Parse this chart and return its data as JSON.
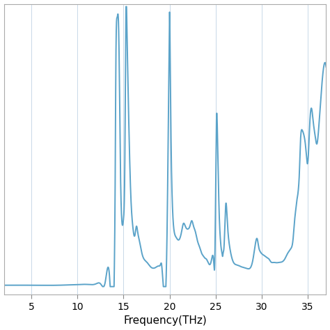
{
  "line_color": "#5ba3c9",
  "background_color": "#ffffff",
  "xlabel": "Frequency(THz)",
  "ylabel": "",
  "xlim": [
    2,
    37
  ],
  "ylim": [
    -0.03,
    1.03
  ],
  "xticks": [
    5,
    10,
    15,
    20,
    25,
    30,
    35
  ],
  "grid_color": "#c8d8e8",
  "line_width": 1.4,
  "figsize": [
    4.74,
    4.74
  ],
  "dpi": 100,
  "keypoints_x": [
    2.0,
    3.0,
    5.0,
    8.0,
    9.0,
    10.0,
    11.0,
    12.0,
    12.5,
    13.0,
    13.5,
    14.0,
    14.1,
    14.15,
    14.2,
    14.3,
    14.45,
    14.6,
    14.65,
    14.7,
    15.0,
    15.15,
    15.2,
    15.25,
    15.35,
    15.6,
    15.8,
    16.0,
    16.15,
    16.25,
    16.4,
    16.55,
    16.7,
    17.0,
    17.5,
    18.0,
    18.5,
    18.8,
    19.0,
    19.1,
    19.7,
    19.85,
    19.95,
    20.0,
    20.05,
    20.15,
    20.3,
    20.5,
    20.7,
    21.0,
    21.3,
    21.5,
    21.7,
    21.9,
    22.0,
    22.2,
    22.4,
    22.6,
    22.8,
    23.0,
    23.3,
    23.5,
    23.7,
    23.8,
    24.0,
    24.5,
    24.8,
    24.9,
    25.0,
    25.1,
    25.2,
    25.3,
    25.4,
    25.5,
    25.6,
    25.7,
    25.75,
    25.8,
    25.9,
    26.0,
    26.1,
    26.2,
    26.3,
    26.5,
    26.8,
    27.0,
    27.2,
    27.4,
    27.6,
    27.8,
    28.0,
    28.2,
    28.5,
    28.8,
    29.0,
    29.2,
    29.4,
    29.5,
    29.6,
    29.7,
    29.8,
    30.0,
    30.2,
    30.4,
    30.6,
    30.8,
    31.0,
    31.3,
    31.6,
    31.9,
    32.2,
    32.5,
    32.8,
    33.0,
    33.2,
    33.4,
    33.5,
    33.6,
    33.7,
    33.8,
    33.9,
    34.0,
    34.1,
    34.2,
    34.4,
    34.6,
    34.8,
    35.0,
    35.1,
    35.2,
    35.4,
    35.6,
    35.8,
    36.0,
    36.2,
    36.5,
    37.0
  ],
  "keypoints_y": [
    0.005,
    0.005,
    0.005,
    0.005,
    0.006,
    0.007,
    0.008,
    0.01,
    0.01,
    0.015,
    0.025,
    0.07,
    0.45,
    0.75,
    0.92,
    0.98,
    0.96,
    0.6,
    0.45,
    0.35,
    0.25,
    0.5,
    0.75,
    0.99,
    0.97,
    0.55,
    0.32,
    0.22,
    0.185,
    0.19,
    0.22,
    0.195,
    0.17,
    0.12,
    0.09,
    0.07,
    0.07,
    0.075,
    0.08,
    0.085,
    0.15,
    0.55,
    0.88,
    1.0,
    0.88,
    0.55,
    0.3,
    0.2,
    0.18,
    0.17,
    0.2,
    0.23,
    0.22,
    0.21,
    0.21,
    0.22,
    0.24,
    0.22,
    0.2,
    0.17,
    0.14,
    0.12,
    0.11,
    0.105,
    0.1,
    0.09,
    0.085,
    0.082,
    0.35,
    0.62,
    0.55,
    0.38,
    0.25,
    0.18,
    0.14,
    0.12,
    0.11,
    0.12,
    0.14,
    0.22,
    0.3,
    0.28,
    0.22,
    0.15,
    0.1,
    0.085,
    0.08,
    0.078,
    0.075,
    0.072,
    0.07,
    0.068,
    0.065,
    0.07,
    0.09,
    0.13,
    0.17,
    0.175,
    0.16,
    0.14,
    0.13,
    0.12,
    0.115,
    0.11,
    0.105,
    0.1,
    0.09,
    0.088,
    0.087,
    0.088,
    0.09,
    0.1,
    0.12,
    0.13,
    0.14,
    0.17,
    0.21,
    0.25,
    0.28,
    0.31,
    0.33,
    0.36,
    0.42,
    0.52,
    0.57,
    0.55,
    0.5,
    0.45,
    0.5,
    0.58,
    0.65,
    0.6,
    0.55,
    0.52,
    0.58,
    0.72,
    0.8
  ]
}
